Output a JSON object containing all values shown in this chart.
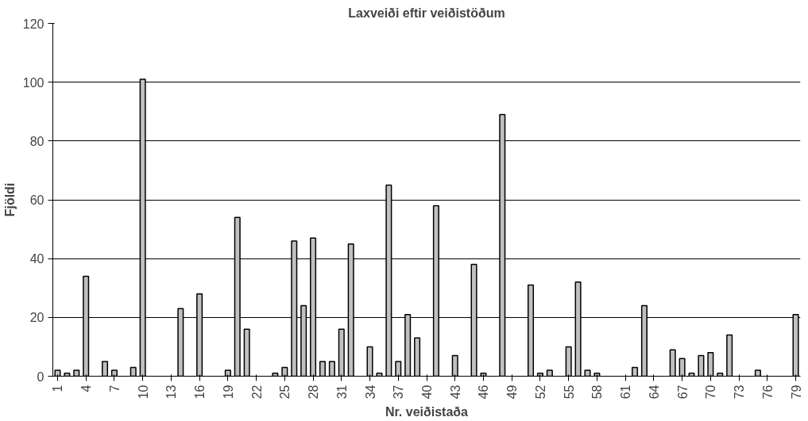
{
  "chart_data": {
    "type": "bar",
    "title": "Laxveiði eftir veiðistöðum",
    "xlabel": "Nr. veiðistaða",
    "ylabel": "Fjöldi",
    "categories": [
      "1",
      null,
      null,
      "4",
      null,
      null,
      "7",
      null,
      null,
      "10",
      null,
      null,
      "13",
      null,
      null,
      "16",
      null,
      null,
      "19",
      null,
      null,
      "22",
      null,
      null,
      "25",
      null,
      null,
      "28",
      null,
      null,
      "31",
      null,
      null,
      "34",
      null,
      null,
      "37",
      null,
      null,
      "40",
      null,
      null,
      "43",
      null,
      null,
      "46",
      null,
      null,
      "49",
      null,
      null,
      "52",
      null,
      null,
      "55",
      null,
      null,
      "58",
      null,
      null,
      "61",
      null,
      null,
      "64",
      null,
      null,
      "67",
      null,
      null,
      "70",
      null,
      null,
      "73",
      null,
      null,
      "76",
      null,
      null,
      "79"
    ],
    "values": [
      2,
      1,
      2,
      34,
      null,
      5,
      2,
      null,
      3,
      101,
      null,
      null,
      null,
      23,
      null,
      28,
      null,
      null,
      2,
      54,
      16,
      null,
      null,
      1,
      3,
      46,
      24,
      47,
      5,
      5,
      16,
      45,
      null,
      10,
      1,
      65,
      5,
      21,
      13,
      null,
      58,
      null,
      7,
      null,
      38,
      1,
      null,
      89,
      null,
      null,
      31,
      1,
      2,
      null,
      10,
      32,
      2,
      1,
      null,
      null,
      null,
      3,
      24,
      null,
      null,
      9,
      6,
      1,
      7,
      8,
      1,
      14,
      null,
      null,
      2,
      null,
      null,
      null,
      21
    ],
    "color": "#c0c0c0",
    "ylim": [
      0,
      120
    ],
    "yticks": [
      0,
      20,
      40,
      60,
      80,
      100,
      120
    ],
    "grid": "y"
  }
}
